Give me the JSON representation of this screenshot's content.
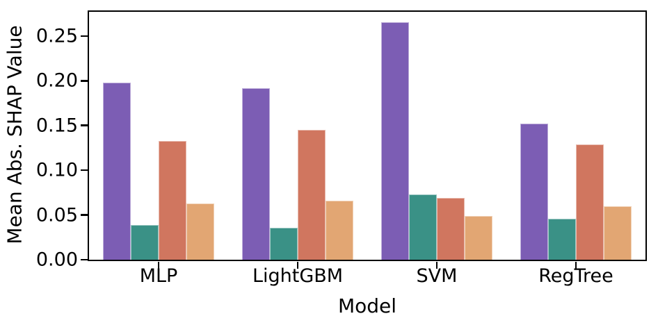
{
  "chart_data": {
    "type": "bar",
    "title": "",
    "xlabel": "Model",
    "ylabel": "Mean Abs. SHAP Value",
    "categories": [
      "MLP",
      "LightGBM",
      "SVM",
      "RegTree"
    ],
    "series": [
      {
        "name": "purple",
        "color": "#7c5db4",
        "values": [
          0.198,
          0.192,
          0.265,
          0.152
        ]
      },
      {
        "name": "teal",
        "color": "#3a9186",
        "values": [
          0.039,
          0.036,
          0.073,
          0.046
        ]
      },
      {
        "name": "salmon",
        "color": "#d0765f",
        "values": [
          0.133,
          0.145,
          0.069,
          0.129
        ]
      },
      {
        "name": "orange",
        "color": "#e2a673",
        "values": [
          0.063,
          0.066,
          0.049,
          0.06
        ]
      }
    ],
    "ylim": [
      0,
      0.277
    ],
    "yticks": [
      {
        "value": 0.0,
        "label": "0.00"
      },
      {
        "value": 0.05,
        "label": "0.05"
      },
      {
        "value": 0.1,
        "label": "0.10"
      },
      {
        "value": 0.15,
        "label": "0.15"
      },
      {
        "value": 0.2,
        "label": "0.20"
      },
      {
        "value": 0.25,
        "label": "0.25"
      }
    ],
    "grid": false,
    "legend": false,
    "bar_edge_color": "rgba(255,255,255,0.5)",
    "axis_color": "#000000",
    "text_color": "#000000",
    "background_color": "#ffffff"
  }
}
